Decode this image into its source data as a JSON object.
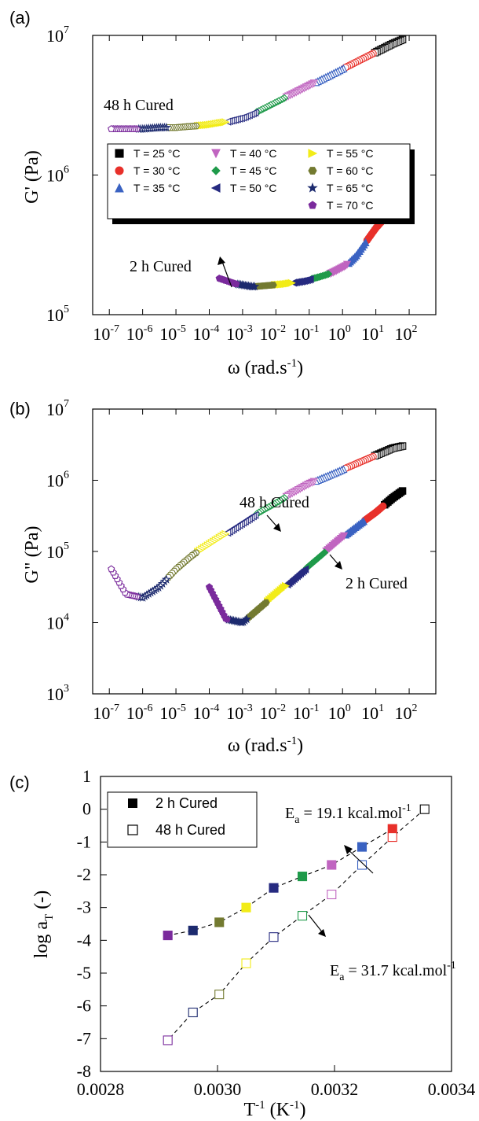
{
  "panels": [
    {
      "label": "(a)",
      "type": "scatter",
      "xlabel": "ω (rad.s",
      "xlabel_sup": "-1",
      "xlabel_end": ")",
      "ylabel": "G' (Pa)",
      "xscale": "log",
      "yscale": "log",
      "xlim": [
        -7.5,
        2.8
      ],
      "ylim": [
        5,
        7
      ],
      "xticks": [
        -7,
        -6,
        -5,
        -4,
        -3,
        -2,
        -1,
        0,
        1,
        2
      ],
      "yticks": [
        5,
        6,
        7
      ],
      "legend": {
        "placement": "center",
        "shadow": true
      },
      "annotations": [
        {
          "text": "48 h Cured"
        },
        {
          "text": "2 h Cured"
        }
      ]
    },
    {
      "label": "(b)",
      "type": "scatter",
      "xlabel": "ω (rad.s",
      "xlabel_sup": "-1",
      "xlabel_end": ")",
      "ylabel": "G\" (Pa)",
      "xscale": "log",
      "yscale": "log",
      "xlim": [
        -7.5,
        2.8
      ],
      "ylim": [
        3,
        7
      ],
      "xticks": [
        -7,
        -6,
        -5,
        -4,
        -3,
        -2,
        -1,
        0,
        1,
        2
      ],
      "yticks": [
        3,
        4,
        5,
        6,
        7
      ],
      "annotations": [
        {
          "text": "48 h Cured"
        },
        {
          "text": "2 h Cured"
        }
      ]
    },
    {
      "label": "(c)",
      "type": "scatter",
      "xlabel": "T",
      "xlabel_sup": "-1",
      "xlabel_end": " (K",
      "xlabel_sup2": "-1",
      "xlabel_end2": ")",
      "ylabel": "log a",
      "ylabel_sub": "T",
      "ylabel_end": " (-)",
      "xlim": [
        0.0028,
        0.0034
      ],
      "ylim": [
        -8,
        1
      ],
      "xticks": [
        "0.0028",
        "0.0030",
        "0.0032",
        "0.0034"
      ],
      "yticks": [
        "1",
        "0",
        "-1",
        "-2",
        "-3",
        "-4",
        "-5",
        "-6",
        "-7",
        "-8"
      ],
      "legend": {
        "placement": "top-left",
        "entries": [
          "2 h Cured",
          "48 h Cured"
        ]
      },
      "annotations": [
        {
          "text": "E",
          "sub": "a",
          "rest": " = 19.1 kcal.mol",
          "sup": "-1"
        },
        {
          "text": "E",
          "sub": "a",
          "rest": " = 31.7 kcal.mol",
          "sup": "-1"
        }
      ]
    }
  ],
  "temperatures": [
    {
      "label": "T = 25 °C",
      "color": "#000000",
      "marker": "square"
    },
    {
      "label": "T = 30 °C",
      "color": "#e8302a",
      "marker": "circle"
    },
    {
      "label": "T = 35 °C",
      "color": "#3a62c2",
      "marker": "triangle-up"
    },
    {
      "label": "T = 40 °C",
      "color": "#c065c0",
      "marker": "triangle-down"
    },
    {
      "label": "T = 45 °C",
      "color": "#1f9a4a",
      "marker": "diamond"
    },
    {
      "label": "T = 50 °C",
      "color": "#262a80",
      "marker": "triangle-left"
    },
    {
      "label": "T = 55 °C",
      "color": "#f2ec18",
      "marker": "triangle-right"
    },
    {
      "label": "T = 60 °C",
      "color": "#737a30",
      "marker": "hexagon"
    },
    {
      "label": "T = 65 °C",
      "color": "#1c2a6e",
      "marker": "star"
    },
    {
      "label": "T = 70 °C",
      "color": "#7a2a9c",
      "marker": "pentagon"
    }
  ],
  "chart_data": [
    {
      "type": "scatter",
      "title": "",
      "xlabel": "ω (rad.s-1)",
      "ylabel": "G' (Pa)",
      "note": "log10 values; master curves shifted by temperature",
      "series": [
        {
          "name": "2 h Cured",
          "x_log10": [
            1.8,
            1.6,
            1.3,
            1.0,
            0.7,
            0.4,
            0.1,
            -0.3,
            -0.7,
            -1.2,
            -1.7,
            -2.2,
            -2.7,
            -3.2,
            -3.7
          ],
          "y_log10": [
            5.9,
            5.78,
            5.7,
            5.62,
            5.52,
            5.42,
            5.35,
            5.3,
            5.27,
            5.24,
            5.22,
            5.21,
            5.2,
            5.22,
            5.26
          ]
        },
        {
          "name": "48 h Cured",
          "x_log10": [
            1.8,
            1.5,
            1.0,
            0.5,
            0.0,
            -0.5,
            -1.0,
            -1.5,
            -2.0,
            -2.5,
            -3.0,
            -3.5,
            -4.0,
            -4.5,
            -5.0,
            -5.5,
            -6.0,
            -6.5,
            -7.0
          ],
          "y_log10": [
            6.97,
            6.94,
            6.88,
            6.82,
            6.76,
            6.7,
            6.64,
            6.58,
            6.52,
            6.46,
            6.41,
            6.38,
            6.36,
            6.35,
            6.34,
            6.34,
            6.33,
            6.33,
            6.33
          ]
        }
      ]
    },
    {
      "type": "scatter",
      "title": "",
      "xlabel": "ω (rad.s-1)",
      "ylabel": "G\" (Pa)",
      "series": [
        {
          "name": "2 h Cured",
          "x_log10": [
            1.8,
            1.5,
            1.0,
            0.5,
            0.0,
            -0.5,
            -1.0,
            -1.5,
            -2.0,
            -2.5,
            -3.0,
            -3.5,
            -4.0
          ],
          "y_log10": [
            5.85,
            5.75,
            5.55,
            5.38,
            5.2,
            5.0,
            4.8,
            4.6,
            4.4,
            4.2,
            4.0,
            4.05,
            4.5
          ]
        },
        {
          "name": "48 h Cured",
          "x_log10": [
            1.8,
            1.5,
            1.0,
            0.5,
            0.0,
            -0.5,
            -1.0,
            -1.5,
            -2.0,
            -2.5,
            -3.0,
            -3.5,
            -4.0,
            -4.5,
            -5.0,
            -5.5,
            -6.0,
            -6.5,
            -7.0
          ],
          "y_log10": [
            6.48,
            6.45,
            6.35,
            6.25,
            6.15,
            6.05,
            5.95,
            5.82,
            5.68,
            5.55,
            5.4,
            5.25,
            5.1,
            4.95,
            4.75,
            4.5,
            4.35,
            4.4,
            4.8
          ]
        }
      ]
    },
    {
      "type": "scatter",
      "title": "",
      "xlabel": "T-1 (K-1)",
      "ylabel": "log aT (-)",
      "xlim": [
        0.0028,
        0.0034
      ],
      "ylim": [
        -8,
        1
      ],
      "series": [
        {
          "name": "2 h Cured",
          "filled": true,
          "x": [
            0.003299,
            0.003247,
            0.003195,
            0.003145,
            0.003096,
            0.003049,
            0.003003,
            0.002958,
            0.002915
          ],
          "y": [
            -0.6,
            -1.15,
            -1.7,
            -2.05,
            -2.4,
            -3.0,
            -3.45,
            -3.7,
            -3.85
          ]
        },
        {
          "name": "48 h Cured",
          "filled": false,
          "x": [
            0.003354,
            0.003299,
            0.003247,
            0.003195,
            0.003145,
            0.003096,
            0.003049,
            0.003003,
            0.002958,
            0.002915
          ],
          "y": [
            0.0,
            -0.85,
            -1.7,
            -2.6,
            -3.25,
            -3.9,
            -4.7,
            -5.65,
            -6.2,
            -7.05
          ]
        }
      ]
    }
  ]
}
